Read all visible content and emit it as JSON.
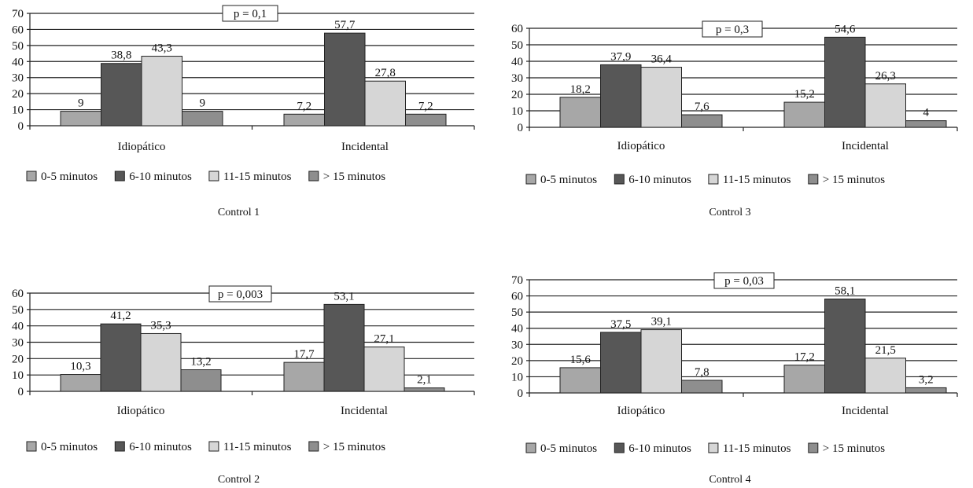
{
  "colors": {
    "0-5 minutos": "#a7a7a7",
    "6-10 minutos": "#575757",
    "11-15 minutos": "#d6d6d6",
    "> 15 minutos": "#8e8e8e"
  },
  "chart_data": [
    {
      "type": "bar",
      "title": "Control 1",
      "annotation": "p = 0,1",
      "categories": [
        "Idiopático",
        "Incidental"
      ],
      "series": [
        {
          "name": "0-5 minutos",
          "values": [
            9,
            7.2
          ],
          "labels": [
            "9",
            "7,2"
          ]
        },
        {
          "name": "6-10 minutos",
          "values": [
            38.8,
            57.7
          ],
          "labels": [
            "38,8",
            "57,7"
          ]
        },
        {
          "name": "11-15 minutos",
          "values": [
            43.3,
            27.8
          ],
          "labels": [
            "43,3",
            "27,8"
          ]
        },
        {
          "name": "> 15 minutos",
          "values": [
            9,
            7.2
          ],
          "labels": [
            "9",
            "7,2"
          ]
        }
      ],
      "ylim": [
        0,
        70
      ],
      "yticks": [
        "0",
        "10",
        "20",
        "30",
        "40",
        "50",
        "60",
        "70"
      ],
      "grid": true,
      "legend": "bottom"
    },
    {
      "type": "bar",
      "title": "Control 3",
      "annotation": "p = 0,3",
      "categories": [
        "Idiopático",
        "Incidental"
      ],
      "series": [
        {
          "name": "0-5 minutos",
          "values": [
            18.2,
            15.2
          ],
          "labels": [
            "18,2",
            "15,2"
          ]
        },
        {
          "name": "6-10 minutos",
          "values": [
            37.9,
            54.6
          ],
          "labels": [
            "37,9",
            "54,6"
          ]
        },
        {
          "name": "11-15 minutos",
          "values": [
            36.4,
            26.3
          ],
          "labels": [
            "36,4",
            "26,3"
          ]
        },
        {
          "name": "> 15 minutos",
          "values": [
            7.6,
            4
          ],
          "labels": [
            "7,6",
            "4"
          ]
        }
      ],
      "ylim": [
        0,
        60
      ],
      "yticks": [
        "0",
        "10",
        "20",
        "30",
        "40",
        "50",
        "60"
      ],
      "grid": true,
      "legend": "bottom"
    },
    {
      "type": "bar",
      "title": "Control 2",
      "annotation": "p = 0,003",
      "categories": [
        "Idiopático",
        "Incidental"
      ],
      "series": [
        {
          "name": "0-5 minutos",
          "values": [
            10.3,
            17.7
          ],
          "labels": [
            "10,3",
            "17,7"
          ]
        },
        {
          "name": "6-10 minutos",
          "values": [
            41.2,
            53.1
          ],
          "labels": [
            "41,2",
            "53,1"
          ]
        },
        {
          "name": "11-15 minutos",
          "values": [
            35.3,
            27.1
          ],
          "labels": [
            "35,3",
            "27,1"
          ]
        },
        {
          "name": "> 15 minutos",
          "values": [
            13.2,
            2.1
          ],
          "labels": [
            "13,2",
            "2,1"
          ]
        }
      ],
      "ylim": [
        0,
        60
      ],
      "yticks": [
        "0",
        "10",
        "20",
        "30",
        "40",
        "50",
        "60"
      ],
      "grid": true,
      "legend": "bottom"
    },
    {
      "type": "bar",
      "title": "Control 4",
      "annotation": "p = 0,03",
      "categories": [
        "Idiopático",
        "Incidental"
      ],
      "series": [
        {
          "name": "0-5 minutos",
          "values": [
            15.6,
            17.2
          ],
          "labels": [
            "15,6",
            "17,2"
          ]
        },
        {
          "name": "6-10 minutos",
          "values": [
            37.5,
            58.1
          ],
          "labels": [
            "37,5",
            "58,1"
          ]
        },
        {
          "name": "11-15 minutos",
          "values": [
            39.1,
            21.5
          ],
          "labels": [
            "39,1",
            "21,5"
          ]
        },
        {
          "name": "> 15 minutos",
          "values": [
            7.8,
            3.2
          ],
          "labels": [
            "7,8",
            "3,2"
          ]
        }
      ],
      "ylim": [
        0,
        70
      ],
      "yticks": [
        "0",
        "10",
        "20",
        "30",
        "40",
        "50",
        "60",
        "70"
      ],
      "grid": true,
      "legend": "bottom"
    }
  ]
}
